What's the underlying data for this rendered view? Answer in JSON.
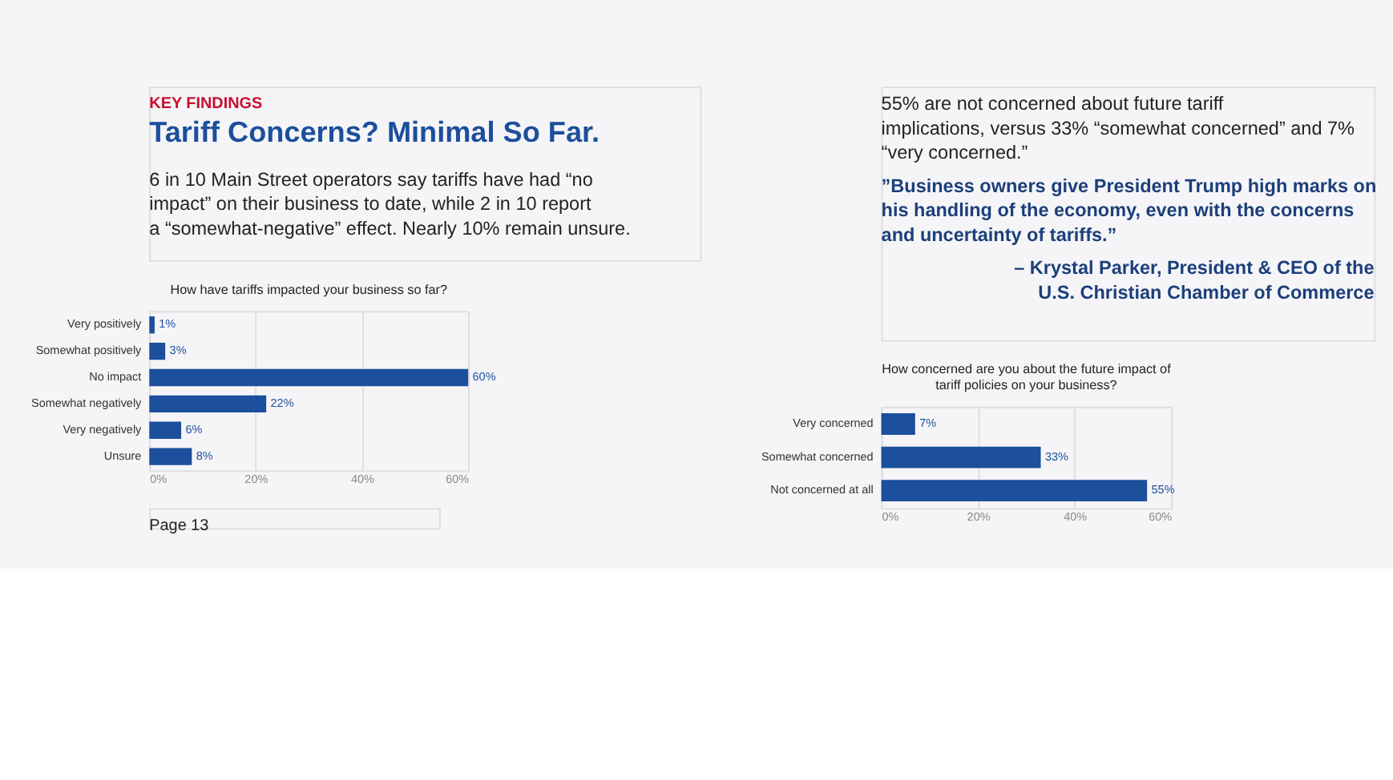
{
  "chart_data": [
    {
      "type": "bar",
      "orientation": "horizontal",
      "title": "How have tariffs impacted your business so far?",
      "categories": [
        "Very positively",
        "Somewhat positively",
        "No impact",
        "Somewhat negatively",
        "Very negatively",
        "Unsure"
      ],
      "values": [
        1,
        3,
        60,
        22,
        6,
        8
      ],
      "value_labels": [
        "1%",
        "3%",
        "60%",
        "22%",
        "6%",
        "8%"
      ],
      "color": "#1c4f9c",
      "xlim": [
        0,
        60
      ],
      "xticks": [
        {
          "value": 0,
          "label": "0%"
        },
        {
          "value": 20,
          "label": "20%"
        },
        {
          "value": 40,
          "label": "40%"
        },
        {
          "value": 60,
          "label": "60%"
        }
      ],
      "grid": "x",
      "annotations": [
        "KEY FINDINGS",
        "Tariff Concerns? Minimal So Far.",
        "6 in 10 Main Street operators say tariffs have had “no impact” on their business to date, while 2 in 10 report a “somewhat-negative” effect. Nearly 10% remain unsure.",
        "Page 13"
      ]
    },
    {
      "type": "bar",
      "orientation": "horizontal",
      "title": "How concerned are you about the future impact of tariff policies on your business?",
      "categories": [
        "Very concerned",
        "Somewhat concerned",
        "Not concerned at all"
      ],
      "values": [
        7,
        33,
        55
      ],
      "value_labels": [
        "7%",
        "33%",
        "55%"
      ],
      "color": "#1c4f9c",
      "xlim": [
        0,
        60
      ],
      "xticks": [
        {
          "value": 0,
          "label": "0%"
        },
        {
          "value": 20,
          "label": "20%"
        },
        {
          "value": 40,
          "label": "40%"
        },
        {
          "value": 60,
          "label": "60%"
        }
      ],
      "grid": "x",
      "annotations": [
        "55% are not concerned about future tariff implications, versus 33% “somewhat concerned” and 7% “very concerned.”",
        "”Business owners give President Trump high marks on his handling of the economy, even with the concerns and uncertainty of tariffs.”",
        "– Krystal Parker, President & CEO of the U.S. Christian Chamber of Commerce"
      ]
    }
  ]
}
